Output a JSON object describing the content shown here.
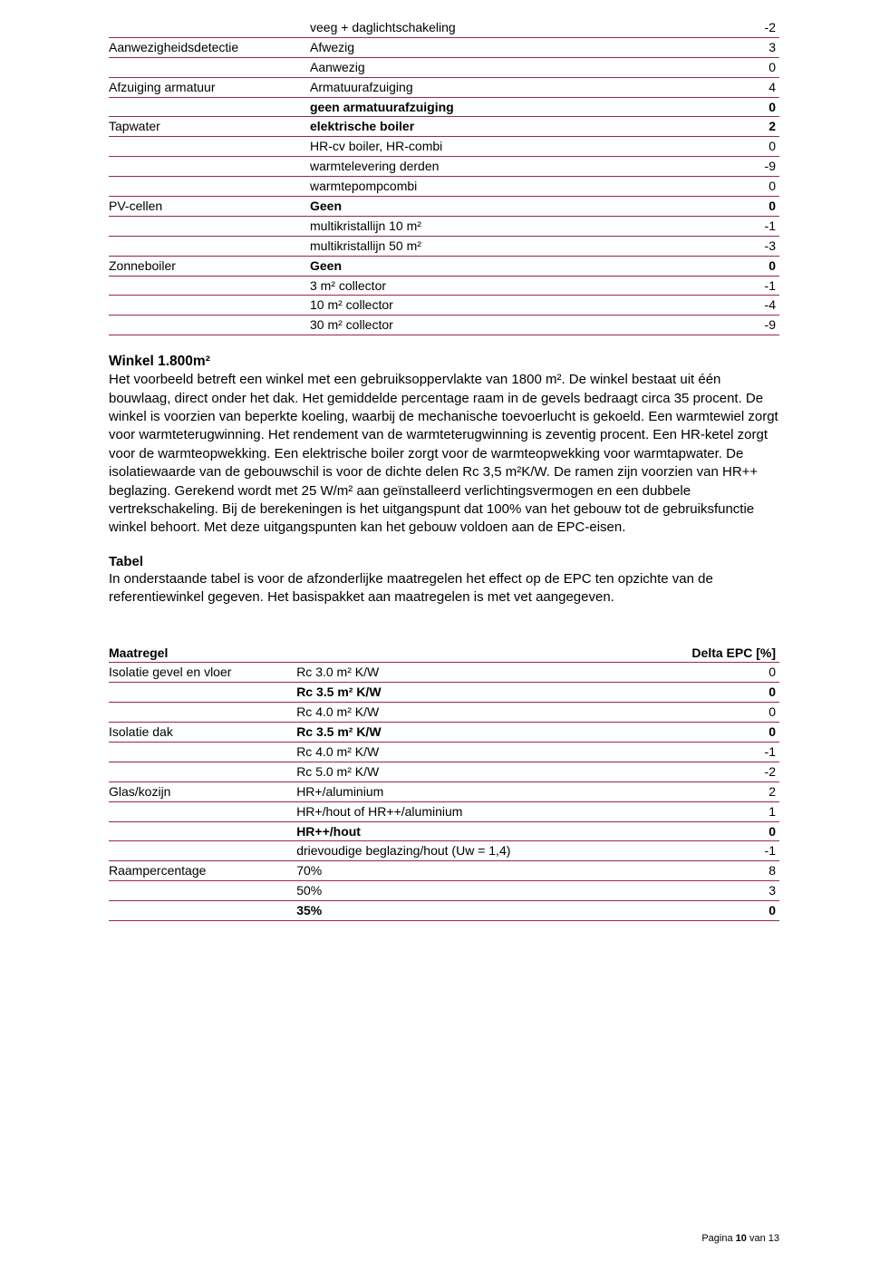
{
  "borderColor": "#9b2743",
  "table1": {
    "rows": [
      {
        "group": "",
        "label": "veeg + daglichtschakeling",
        "val": "-2",
        "bold": false
      },
      {
        "group": "Aanwezigheidsdetectie",
        "label": "Afwezig",
        "val": "3",
        "bold": false
      },
      {
        "group": "",
        "label": "Aanwezig",
        "val": "0",
        "bold": false
      },
      {
        "group": "Afzuiging armatuur",
        "label": "Armatuurafzuiging",
        "val": "4",
        "bold": false
      },
      {
        "group": "",
        "label": "geen armatuurafzuiging",
        "val": "0",
        "bold": true
      },
      {
        "group": "Tapwater",
        "label": "elektrische boiler",
        "val": "2",
        "bold": true
      },
      {
        "group": "",
        "label": "HR-cv boiler, HR-combi",
        "val": "0",
        "bold": false
      },
      {
        "group": "",
        "label": "warmtelevering derden",
        "val": "-9",
        "bold": false
      },
      {
        "group": "",
        "label": "warmtepompcombi",
        "val": "0",
        "bold": false
      },
      {
        "group": "PV-cellen",
        "label": "Geen",
        "val": "0",
        "bold": true
      },
      {
        "group": "",
        "label": "multikristallijn 10 m²",
        "val": "-1",
        "bold": false
      },
      {
        "group": "",
        "label": "multikristallijn 50 m²",
        "val": "-3",
        "bold": false
      },
      {
        "group": "Zonneboiler",
        "label": "Geen",
        "val": "0",
        "bold": true
      },
      {
        "group": "",
        "label": "3 m² collector",
        "val": "-1",
        "bold": false
      },
      {
        "group": "",
        "label": "10 m² collector",
        "val": "-4",
        "bold": false
      },
      {
        "group": "",
        "label": "30 m² collector",
        "val": "-9",
        "bold": false
      }
    ]
  },
  "section": {
    "heading": "Winkel 1.800m²",
    "body": "Het voorbeeld betreft een winkel met een gebruiksoppervlakte van 1800 m². De winkel bestaat uit één bouwlaag, direct onder het dak. Het gemiddelde percentage raam in de gevels bedraagt circa 35 procent. De winkel is voorzien van beperkte koeling, waarbij de mechanische toevoerlucht is gekoeld. Een warmtewiel zorgt voor warmteterugwinning. Het rendement van de warmteterugwinning is zeventig procent. Een HR-ketel zorgt voor de warmteopwekking. Een elektrische boiler zorgt voor de warmteopwekking voor warmtapwater. De isolatiewaarde van de gebouwschil is voor de dichte delen Rc 3,5 m²K/W. De ramen zijn voorzien van HR++ beglazing. Gerekend wordt met 25 W/m² aan geïnstalleerd verlichtingsvermogen en een dubbele vertrekschakeling. Bij de berekeningen is het uitgangspunt dat 100% van het gebouw tot de gebruiksfunctie winkel behoort. Met deze uitgangspunten kan het gebouw voldoen aan de EPC-eisen.",
    "subhead": "Tabel",
    "body2": "In onderstaande tabel is voor de afzonderlijke maatregelen het effect op de EPC ten opzichte van de referentiewinkel gegeven. Het basispakket aan maatregelen is met vet aangegeven."
  },
  "table2": {
    "header": {
      "c1": "Maatregel",
      "c3": "Delta EPC [%]"
    },
    "rows": [
      {
        "group": "Isolatie gevel en vloer",
        "label": "Rc 3.0 m² K/W",
        "val": "0",
        "bold": false
      },
      {
        "group": "",
        "label": "Rc 3.5 m² K/W",
        "val": "0",
        "bold": true
      },
      {
        "group": "",
        "label": "Rc 4.0 m² K/W",
        "val": "0",
        "bold": false
      },
      {
        "group": "Isolatie dak",
        "label": "Rc 3.5 m² K/W",
        "val": "0",
        "bold": true
      },
      {
        "group": "",
        "label": "Rc 4.0 m² K/W",
        "val": "-1",
        "bold": false
      },
      {
        "group": "",
        "label": "Rc 5.0 m² K/W",
        "val": "-2",
        "bold": false
      },
      {
        "group": "Glas/kozijn",
        "label": "HR+/aluminium",
        "val": "2",
        "bold": false
      },
      {
        "group": "",
        "label": "HR+/hout of HR++/aluminium",
        "val": "1",
        "bold": false
      },
      {
        "group": "",
        "label": "HR++/hout",
        "val": "0",
        "bold": true
      },
      {
        "group": "",
        "label": "drievoudige beglazing/hout (Uw = 1,4)",
        "val": "-1",
        "bold": false
      },
      {
        "group": "Raampercentage",
        "label": "70%",
        "val": "8",
        "bold": false
      },
      {
        "group": "",
        "label": "50%",
        "val": "3",
        "bold": false
      },
      {
        "group": "",
        "label": "35%",
        "val": "0",
        "bold": true
      }
    ]
  },
  "footer": {
    "prefix": "Pagina ",
    "num": "10",
    "mid": " van ",
    "total": "13"
  }
}
